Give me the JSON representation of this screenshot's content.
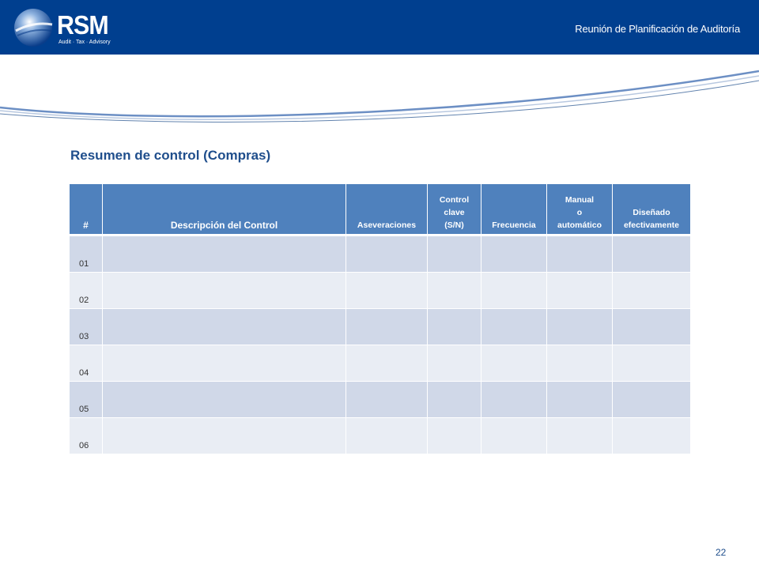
{
  "header": {
    "logo_text": "RSM",
    "logo_tagline": "Audit · Tax · Advisory",
    "title": "Reunión de Planificación de Auditoría"
  },
  "section_title": "Resumen de control (Compras)",
  "table": {
    "columns": [
      [
        "#"
      ],
      [
        "Descripción del Control"
      ],
      [
        "Aseveraciones"
      ],
      [
        "Control",
        "clave",
        "(S/N)"
      ],
      [
        "Frecuencia"
      ],
      [
        "Manual",
        "o",
        "automático"
      ],
      [
        "Diseñado",
        "efectivamente"
      ]
    ],
    "rows": [
      "01",
      "02",
      "03",
      "04",
      "05",
      "06"
    ]
  },
  "page_number": "22",
  "colors": {
    "header_bg": "#003f8f",
    "table_header_bg": "#4f81bd",
    "row_odd": "#d0d8e8",
    "row_even": "#e9edf4",
    "title_text": "#1f4e8c"
  }
}
